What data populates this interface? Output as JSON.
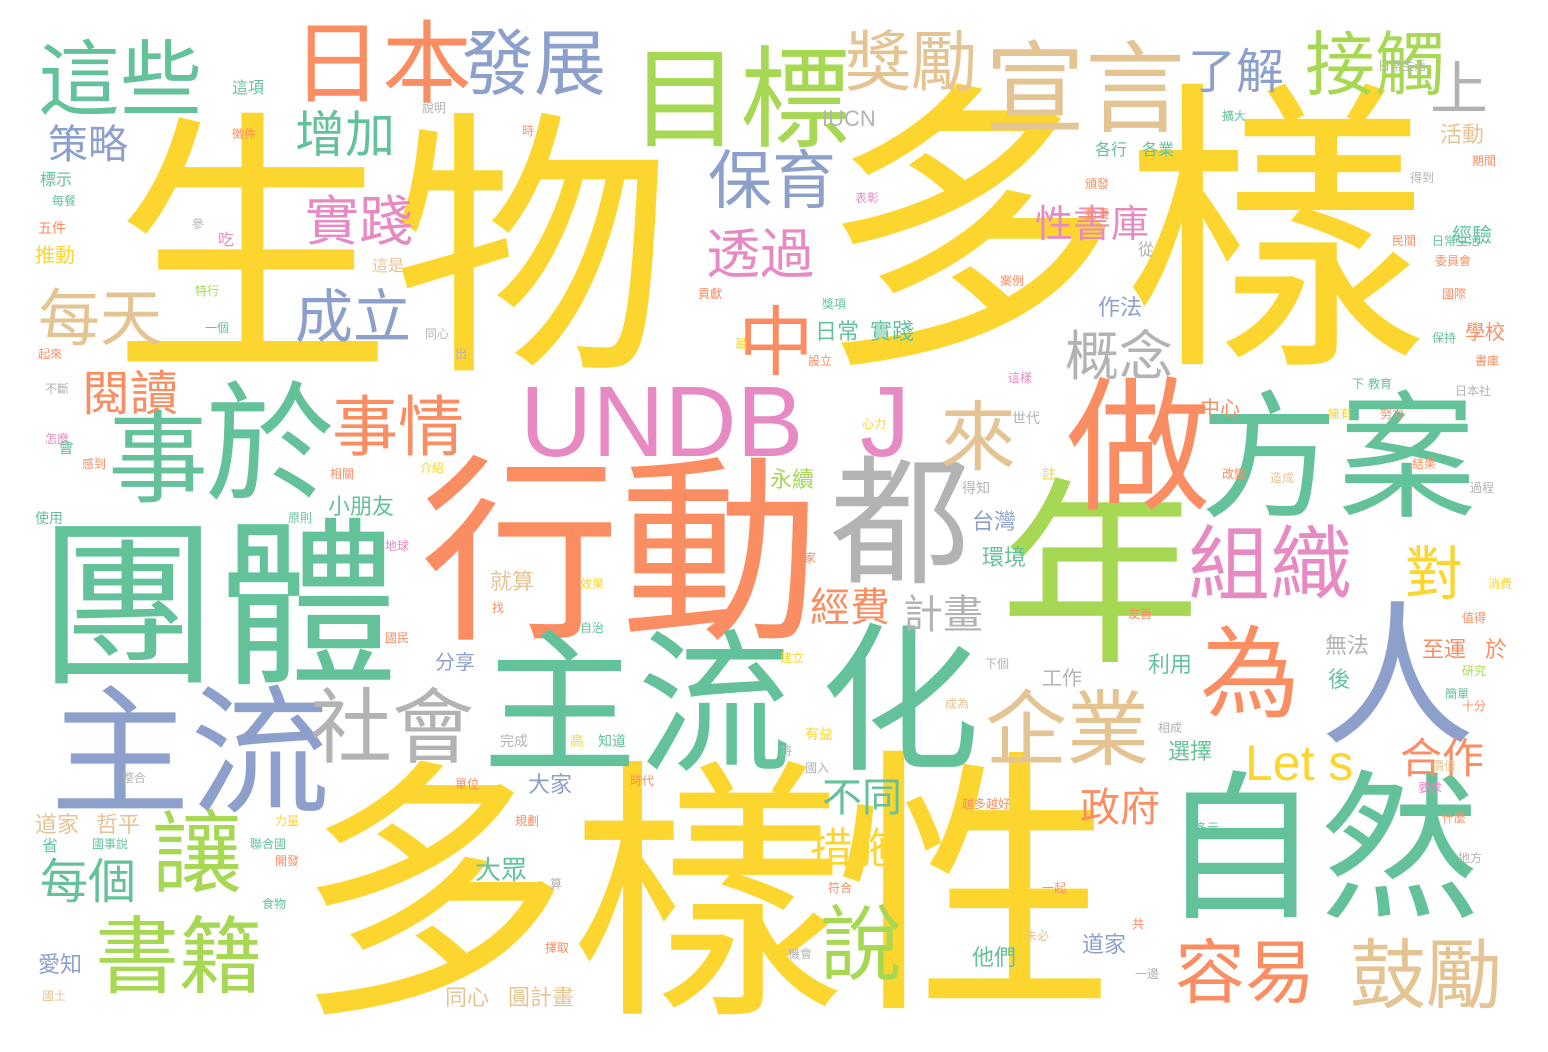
{
  "palette": {
    "yellow": "#fcd52f",
    "green": "#64c29b",
    "orange": "#fb8d62",
    "lime": "#a6d854",
    "blue": "#8da0cb",
    "pink": "#e78ac3",
    "tan": "#e5c494",
    "gray": "#b3b3b3"
  },
  "words": {
    "w1": "生物",
    "w2": "多樣",
    "w3": "多樣",
    "w4": "性",
    "w5": "行動",
    "w6": "團體",
    "w7": "主流",
    "w8": "主流",
    "w9": "化",
    "w10": "年",
    "w11": "自然",
    "w12": "方案",
    "w13": "做",
    "w14": "人",
    "w15": "都",
    "w16": "UNDB",
    "w17": "J",
    "w18": "於",
    "w19": "事",
    "w20": "目標",
    "w21": "宣言",
    "w22": "日本",
    "w23": "這些",
    "w24": "發展",
    "w25": "獎勵",
    "w26": "接觸",
    "w27": "了解",
    "w28": "上",
    "w29": "組織",
    "w30": "為",
    "w31": "社會",
    "w32": "企業",
    "w33": "讓",
    "w34": "書籍",
    "w35": "說",
    "w36": "容易",
    "w37": "鼓勵",
    "w38": "Let s",
    "w39": "合作",
    "w40": "對",
    "w41": "中",
    "w42": "事情",
    "w43": "來",
    "w44": "保育",
    "w45": "透過",
    "w46": "概念",
    "w47": "性書庫",
    "w48": "實踐",
    "w49": "每天",
    "w50": "成立",
    "w51": "增加",
    "w52": "策略",
    "w53": "閱讀",
    "w54": "每個",
    "w55": "不同",
    "w56": "措施",
    "w57": "經費",
    "w58": "計畫",
    "w59": "政府",
    "w60": "IUCN",
    "w61": "大家",
    "w62": "大眾",
    "w63": "道家",
    "w64": "哲平",
    "w65": "同心",
    "w66": "圓計畫",
    "w67": "愛知",
    "w68": "他們",
    "w69": "道家",
    "w70": "選擇",
    "w71": "利用",
    "w72": "工作",
    "w73": "無法",
    "w74": "後",
    "w75": "至運",
    "w76": "於",
    "w77": "分享",
    "w78": "就算",
    "w79": "台灣",
    "w80": "環境",
    "w81": "小朋友",
    "w82": "永續",
    "w83": "日常",
    "w84": "實踐",
    "w85": "作法",
    "w86": "活動",
    "w87": "經驗",
    "w88": "學校",
    "w89": "推動",
    "w90": "五件",
    "w91": "標示",
    "w92": "中心",
    "w93": "各行",
    "w94": "各業",
    "w95": "這項",
    "w96": "從",
    "w97": "這是",
    "w98": "吃",
    "w99": "使用",
    "w100": "會",
    "w101": "省",
    "w102": "完成",
    "w103": "知道",
    "w104": "心力",
    "w105": "世代",
    "w106": "註",
    "w107": "得知",
    "w108": "一個",
    "w109": "日本社",
    "w110": "日常生活",
    "w111": "委員會",
    "w112": "下",
    "w113": "教育",
    "w114": "友善",
    "w115": "國家",
    "w116": "自治",
    "w117": "研究",
    "w118": "十分",
    "w119": "簡單",
    "w120": "什麼",
    "w121": "地方",
    "w122": "食物",
    "w123": "國土",
    "w124": "一邊",
    "w125": "共",
    "w126": "未必",
    "w127": "機會",
    "w128": "有益",
    "w129": "將",
    "w130": "相成",
    "w131": "國入",
    "w132": "成為",
    "w133": "下個",
    "w134": "值得",
    "w135": "消費",
    "w136": "找",
    "w137": "效果",
    "w138": "單位",
    "w139": "整合",
    "w140": "聯合國",
    "w141": "力量",
    "w142": "國事說",
    "w143": "開發",
    "w144": "算",
    "w145": "符合",
    "w146": "擇取",
    "w147": "改變",
    "w148": "造成",
    "w149": "相關",
    "w150": "參",
    "w151": "貢獻",
    "w152": "最",
    "w153": "獎項",
    "w154": "頒發",
    "w155": "案例",
    "w156": "設立",
    "w157": "動漫",
    "w158": "同心",
    "w159": "出",
    "w160": "不斷",
    "w161": "起來",
    "w162": "怎麼",
    "w163": "感到",
    "w164": "特行",
    "w165": "得到",
    "w166": "擴大",
    "w167": "時",
    "w168": "說明",
    "w169": "表彰",
    "w170": "徵件",
    "w171": "民間",
    "w172": "日常生活",
    "w173": "期間",
    "w174": "國際",
    "w175": "保持",
    "w176": "書庫",
    "w177": "努力",
    "w178": "每餐",
    "w179": "這樣",
    "w180": "介紹",
    "w181": "地球",
    "w182": "原則",
    "w183": "越多越好",
    "w184": "要求",
    "w185": "多元",
    "w186": "一起",
    "w187": "高",
    "w188": "規劃",
    "w189": "國民",
    "w190": "時代",
    "w191": "建立",
    "w192": "價值",
    "w193": "過程",
    "w194": "結果",
    "w195": "擁有"
  }
}
